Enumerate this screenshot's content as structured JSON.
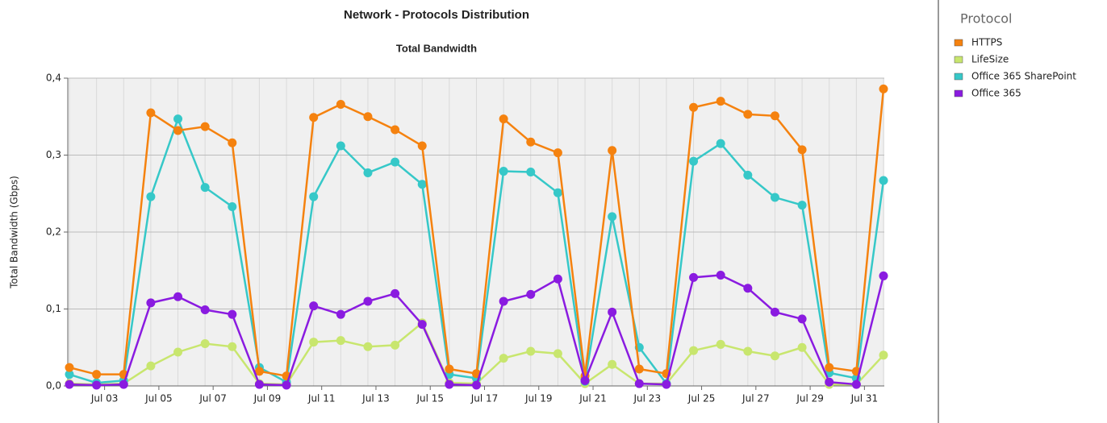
{
  "chart_data": {
    "type": "line",
    "title": "Network - Protocols Distribution",
    "subtitle": "Total Bandwidth",
    "y_label": "Total Bandwidth (Gbps)",
    "legend_title": "Protocol",
    "legend": "right",
    "grid": true,
    "categories": [
      null,
      "Jul 03",
      null,
      "Jul 05",
      null,
      "Jul 07",
      null,
      "Jul 09",
      null,
      "Jul 11",
      null,
      "Jul 13",
      null,
      "Jul 15",
      null,
      "Jul 17",
      null,
      "Jul 19",
      null,
      "Jul 21",
      null,
      "Jul 23",
      null,
      "Jul 25",
      null,
      "Jul 27",
      null,
      "Jul 29",
      null,
      "Jul 31",
      null
    ],
    "ylim": [
      0,
      0.4
    ],
    "yticks": [
      {
        "value": 0,
        "label": "0,0"
      },
      {
        "value": 0.1,
        "label": "0,1"
      },
      {
        "value": 0.2,
        "label": "0,2"
      },
      {
        "value": 0.3,
        "label": "0,3"
      },
      {
        "value": 0.4,
        "label": "0,4"
      }
    ],
    "series": [
      {
        "name": "HTTPS",
        "color": "#f5820f",
        "values": [
          0.024,
          0.015,
          0.015,
          0.355,
          0.332,
          0.337,
          0.316,
          0.019,
          0.013,
          0.349,
          0.366,
          0.35,
          0.333,
          0.312,
          0.022,
          0.016,
          0.347,
          0.317,
          0.303,
          0.013,
          0.306,
          0.022,
          0.016,
          0.362,
          0.37,
          0.353,
          0.351,
          0.307,
          0.024,
          0.019,
          0.386
        ]
      },
      {
        "name": "LifeSize",
        "color": "#c8e66e",
        "values": [
          0.003,
          0.002,
          0.003,
          0.026,
          0.044,
          0.055,
          0.051,
          0.003,
          0.002,
          0.057,
          0.059,
          0.051,
          0.053,
          0.082,
          0.004,
          0.003,
          0.036,
          0.045,
          0.042,
          0.003,
          0.028,
          0.003,
          0.003,
          0.046,
          0.054,
          0.045,
          0.039,
          0.05,
          0.002,
          0.002,
          0.04
        ]
      },
      {
        "name": "Office 365 SharePoint",
        "color": "#36c8c8",
        "values": [
          0.015,
          0.004,
          0.007,
          0.246,
          0.347,
          0.258,
          0.233,
          0.024,
          0.005,
          0.246,
          0.312,
          0.277,
          0.291,
          0.262,
          0.015,
          0.01,
          0.279,
          0.278,
          0.251,
          0.006,
          0.22,
          0.05,
          0.003,
          0.292,
          0.315,
          0.274,
          0.245,
          0.235,
          0.017,
          0.01,
          0.267
        ]
      },
      {
        "name": "Office 365",
        "color": "#8a1be0",
        "values": [
          0.002,
          0.001,
          0.002,
          0.108,
          0.116,
          0.099,
          0.093,
          0.002,
          0.001,
          0.104,
          0.093,
          0.11,
          0.12,
          0.08,
          0.002,
          0.001,
          0.11,
          0.119,
          0.139,
          0.007,
          0.096,
          0.003,
          0.002,
          0.141,
          0.144,
          0.127,
          0.096,
          0.087,
          0.005,
          0.002,
          0.143
        ]
      }
    ]
  }
}
